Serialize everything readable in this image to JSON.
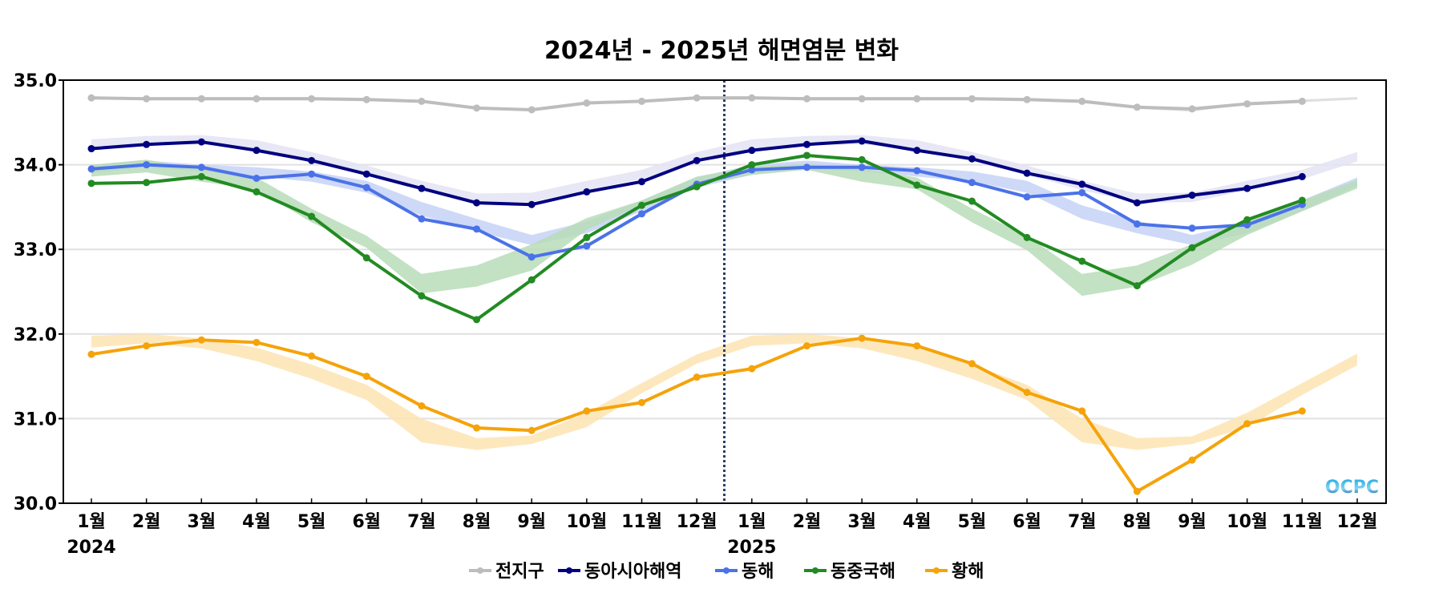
{
  "chart_data": {
    "type": "line",
    "title": "2024년 - 2025년 해면염분 변화",
    "xlabel": "",
    "ylabel": "",
    "ylim": [
      30.0,
      35.0
    ],
    "yticks": [
      "30.0",
      "31.0",
      "32.0",
      "33.0",
      "34.0",
      "35.0"
    ],
    "grid": true,
    "x_tick_labels": [
      "1월",
      "2월",
      "3월",
      "4월",
      "5월",
      "6월",
      "7월",
      "8월",
      "9월",
      "10월",
      "11월",
      "12월",
      "1월",
      "2월",
      "3월",
      "4월",
      "5월",
      "6월",
      "7월",
      "8월",
      "9월",
      "10월",
      "11월",
      "12월"
    ],
    "year_labels": [
      {
        "label": "2024",
        "month_index": 0
      },
      {
        "label": "2025",
        "month_index": 12
      }
    ],
    "divider_between": [
      11,
      12
    ],
    "legend_position": "bottom-center",
    "watermark": "OCPC",
    "series": [
      {
        "name": "전지구",
        "color": "#bdbdbd",
        "values": [
          34.79,
          34.78,
          34.78,
          34.78,
          34.78,
          34.77,
          34.75,
          34.67,
          34.65,
          34.73,
          34.75,
          34.79,
          34.79,
          34.78,
          34.78,
          34.78,
          34.78,
          34.77,
          34.75,
          34.68,
          34.66,
          34.72,
          34.75
        ],
        "climatology_low": [
          34.77,
          34.77,
          34.77,
          34.77,
          34.77,
          34.76,
          34.73,
          34.66,
          34.63,
          34.71,
          34.74,
          34.77,
          34.77,
          34.77,
          34.77,
          34.77,
          34.77,
          34.76,
          34.73,
          34.66,
          34.63,
          34.71,
          34.74,
          34.77
        ],
        "climatology_high": [
          34.8,
          34.8,
          34.8,
          34.8,
          34.8,
          34.79,
          34.76,
          34.69,
          34.66,
          34.74,
          34.77,
          34.8,
          34.8,
          34.8,
          34.8,
          34.8,
          34.8,
          34.79,
          34.76,
          34.69,
          34.66,
          34.74,
          34.77,
          34.8
        ],
        "band_color": "#d9d9d9"
      },
      {
        "name": "동아시아해역",
        "color": "#000080",
        "values": [
          34.19,
          34.24,
          34.27,
          34.17,
          34.05,
          33.89,
          33.72,
          33.55,
          33.53,
          33.68,
          33.8,
          34.05,
          34.17,
          34.24,
          34.28,
          34.17,
          34.07,
          33.9,
          33.77,
          33.55,
          33.64,
          33.72,
          33.86
        ],
        "climatology_low": [
          34.19,
          34.23,
          34.24,
          34.18,
          34.04,
          33.88,
          33.7,
          33.55,
          33.56,
          33.7,
          33.83,
          34.04,
          34.19,
          34.23,
          34.24,
          34.18,
          34.04,
          33.88,
          33.7,
          33.55,
          33.56,
          33.7,
          33.83,
          34.04
        ],
        "climatology_high": [
          34.3,
          34.34,
          34.35,
          34.29,
          34.15,
          33.99,
          33.81,
          33.66,
          33.67,
          33.81,
          33.94,
          34.15,
          34.3,
          34.34,
          34.35,
          34.29,
          34.15,
          33.99,
          33.81,
          33.66,
          33.67,
          33.81,
          33.94,
          34.15
        ],
        "band_color": "#e3e3f3"
      },
      {
        "name": "동해",
        "color": "#4b72e8",
        "values": [
          33.95,
          34.0,
          33.97,
          33.84,
          33.89,
          33.73,
          33.36,
          33.24,
          32.91,
          33.04,
          33.42,
          33.77,
          33.94,
          33.97,
          33.97,
          33.93,
          33.79,
          33.62,
          33.67,
          33.3,
          33.25,
          33.29,
          33.53
        ],
        "climatology_low": [
          33.9,
          33.97,
          33.92,
          33.86,
          33.8,
          33.67,
          33.4,
          33.21,
          33.05,
          33.19,
          33.45,
          33.73,
          33.88,
          33.95,
          33.92,
          33.86,
          33.8,
          33.67,
          33.36,
          33.19,
          33.05,
          33.19,
          33.45,
          33.75
        ],
        "climatology_high": [
          34.0,
          34.05,
          34.0,
          33.97,
          33.92,
          33.81,
          33.56,
          33.36,
          33.17,
          33.33,
          33.58,
          33.85,
          34.0,
          34.05,
          34.0,
          33.97,
          33.92,
          33.81,
          33.52,
          33.34,
          33.17,
          33.33,
          33.58,
          33.85
        ],
        "band_color": "#c6d2f6"
      },
      {
        "name": "동중국해",
        "color": "#228b22",
        "values": [
          33.78,
          33.79,
          33.86,
          33.68,
          33.39,
          32.9,
          32.45,
          32.17,
          32.64,
          33.14,
          33.52,
          33.74,
          34.0,
          34.11,
          34.06,
          33.76,
          33.57,
          33.14,
          32.86,
          32.57,
          33.02,
          33.35,
          33.58
        ],
        "climatology_low": [
          33.86,
          33.91,
          33.8,
          33.71,
          33.32,
          33.02,
          32.48,
          32.56,
          32.75,
          33.23,
          33.53,
          33.76,
          33.88,
          33.94,
          33.8,
          33.71,
          33.32,
          32.99,
          32.45,
          32.56,
          32.82,
          33.17,
          33.45,
          33.72
        ],
        "climatology_high": [
          34.0,
          34.06,
          33.95,
          33.85,
          33.48,
          33.16,
          32.71,
          32.81,
          33.06,
          33.37,
          33.58,
          33.86,
          33.98,
          34.01,
          33.95,
          33.85,
          33.48,
          33.16,
          32.71,
          32.81,
          33.06,
          33.37,
          33.58,
          33.82
        ],
        "band_color": "#b8dcb8"
      },
      {
        "name": "황해",
        "color": "#f5a30a",
        "values": [
          31.76,
          31.86,
          31.93,
          31.9,
          31.74,
          31.5,
          31.15,
          30.89,
          30.86,
          31.09,
          31.19,
          31.49,
          31.59,
          31.86,
          31.95,
          31.86,
          31.65,
          31.31,
          31.09,
          30.14,
          30.51,
          30.94,
          31.09
        ],
        "climatology_low": [
          31.84,
          31.89,
          31.83,
          31.68,
          31.47,
          31.22,
          30.72,
          30.63,
          30.7,
          30.9,
          31.3,
          31.65,
          31.86,
          31.89,
          31.83,
          31.68,
          31.47,
          31.22,
          30.72,
          30.63,
          30.7,
          30.9,
          31.28,
          31.63
        ],
        "climatology_high": [
          31.98,
          32.0,
          31.95,
          31.84,
          31.64,
          31.4,
          31.0,
          30.77,
          30.8,
          31.07,
          31.42,
          31.76,
          31.98,
          32.0,
          31.95,
          31.84,
          31.64,
          31.4,
          31.0,
          30.77,
          30.79,
          31.07,
          31.42,
          31.77
        ],
        "band_color": "#fde4b3"
      }
    ]
  }
}
